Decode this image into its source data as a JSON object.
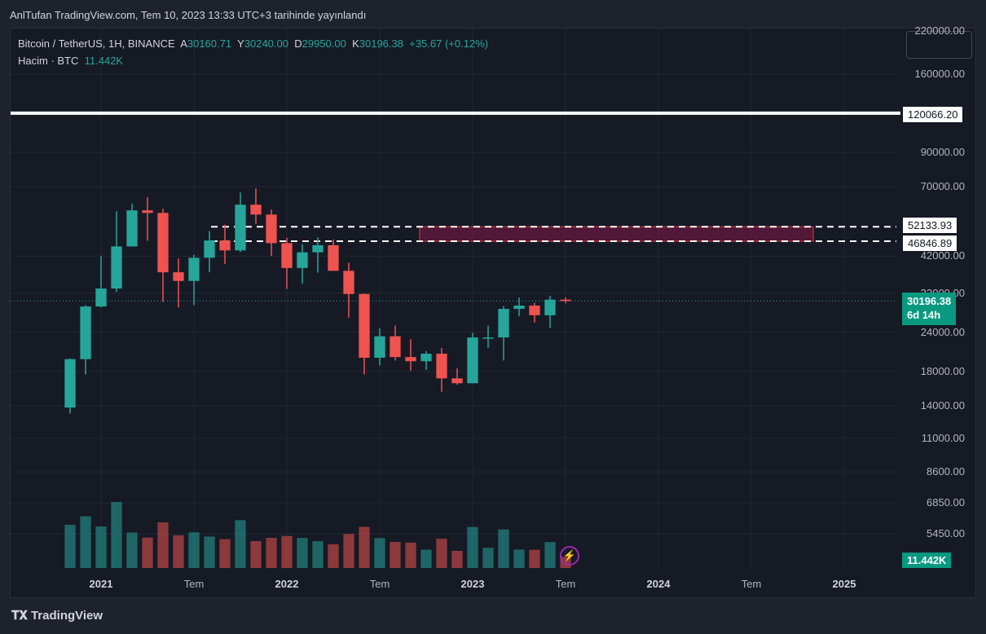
{
  "header": {
    "publish": "AnlTufan TradingView.com, Tem 10, 2023 13:33 UTC+3 tarihinde yayınlandı"
  },
  "legend": {
    "symbol": "Bitcoin / TetherUS, 1H, BINANCE",
    "open_label": "A",
    "open": "30160.71",
    "high_label": "Y",
    "high": "30240.00",
    "low_label": "D",
    "low": "29950.00",
    "close_label": "K",
    "close": "30196.38",
    "change": "+35.67 (+0.12%)",
    "volume_label": "Hacim · BTC",
    "volume": "11.442K"
  },
  "y_ticks": [
    "220000.00",
    "160000.00",
    "90000.00",
    "70000.00",
    "42000.00",
    "32000.00",
    "24000.00",
    "18000.00",
    "14000.00",
    "11000.00",
    "8600.00",
    "6850.00",
    "5450.00"
  ],
  "x_ticks": [
    "2021",
    "Tem",
    "2022",
    "Tem",
    "2023",
    "Tem",
    "2024",
    "Tem",
    "2025"
  ],
  "price_tags": {
    "line_top": "120066.20",
    "zone_high": "52133.93",
    "zone_low": "46846.89",
    "current": "30196.38",
    "countdown": "6d 14h",
    "volume_now": "11.442K"
  },
  "colors": {
    "up": "#26a69a",
    "down": "#ef5350",
    "zone": "#c2185b"
  },
  "footer": {
    "brand": "TradingView"
  },
  "chart_data": {
    "type": "candlestick",
    "symbol": "Bitcoin / TetherUS",
    "exchange": "BINANCE",
    "y_scale": "log",
    "horizontal_lines": [
      120066.2,
      52133.93,
      46846.89
    ],
    "resistance_zone": {
      "low": 46846.89,
      "high": 52133.93
    },
    "current_price": 30196.38,
    "ohlc": [
      {
        "d": "2020-11",
        "o": 13800,
        "h": 19800,
        "l": 13200,
        "c": 19700
      },
      {
        "d": "2020-12",
        "o": 19700,
        "h": 29300,
        "l": 17600,
        "c": 29000
      },
      {
        "d": "2021-01",
        "o": 29000,
        "h": 42000,
        "l": 28800,
        "c": 33100
      },
      {
        "d": "2021-02",
        "o": 33100,
        "h": 58400,
        "l": 32300,
        "c": 45100
      },
      {
        "d": "2021-03",
        "o": 45100,
        "h": 61800,
        "l": 45000,
        "c": 58800
      },
      {
        "d": "2021-04",
        "o": 58800,
        "h": 64800,
        "l": 47000,
        "c": 57700
      },
      {
        "d": "2021-05",
        "o": 57700,
        "h": 59500,
        "l": 30000,
        "c": 37300
      },
      {
        "d": "2021-06",
        "o": 37300,
        "h": 41300,
        "l": 28800,
        "c": 35000
      },
      {
        "d": "2021-07",
        "o": 35000,
        "h": 42400,
        "l": 29300,
        "c": 41500
      },
      {
        "d": "2021-08",
        "o": 41500,
        "h": 50500,
        "l": 37300,
        "c": 47100
      },
      {
        "d": "2021-09",
        "o": 47100,
        "h": 52900,
        "l": 39600,
        "c": 43800
      },
      {
        "d": "2021-10",
        "o": 43800,
        "h": 67000,
        "l": 43300,
        "c": 61300
      },
      {
        "d": "2021-11",
        "o": 61300,
        "h": 69000,
        "l": 53300,
        "c": 57000
      },
      {
        "d": "2021-12",
        "o": 57000,
        "h": 59100,
        "l": 42000,
        "c": 46200
      },
      {
        "d": "2022-01",
        "o": 46200,
        "h": 48000,
        "l": 33000,
        "c": 38500
      },
      {
        "d": "2022-02",
        "o": 38500,
        "h": 45800,
        "l": 34300,
        "c": 43200
      },
      {
        "d": "2022-03",
        "o": 43200,
        "h": 48200,
        "l": 37200,
        "c": 45500
      },
      {
        "d": "2022-04",
        "o": 45500,
        "h": 47400,
        "l": 37700,
        "c": 37700
      },
      {
        "d": "2022-05",
        "o": 37700,
        "h": 40000,
        "l": 26700,
        "c": 31800
      },
      {
        "d": "2022-06",
        "o": 31800,
        "h": 31900,
        "l": 17600,
        "c": 19900
      },
      {
        "d": "2022-07",
        "o": 19900,
        "h": 24700,
        "l": 18800,
        "c": 23300
      },
      {
        "d": "2022-08",
        "o": 23300,
        "h": 25200,
        "l": 19500,
        "c": 20000
      },
      {
        "d": "2022-09",
        "o": 20000,
        "h": 22800,
        "l": 18100,
        "c": 19400
      },
      {
        "d": "2022-10",
        "o": 19400,
        "h": 20900,
        "l": 18200,
        "c": 20500
      },
      {
        "d": "2022-11",
        "o": 20500,
        "h": 21400,
        "l": 15500,
        "c": 17100
      },
      {
        "d": "2022-12",
        "o": 17100,
        "h": 18400,
        "l": 16300,
        "c": 16500
      },
      {
        "d": "2023-01",
        "o": 16500,
        "h": 23900,
        "l": 16500,
        "c": 23100
      },
      {
        "d": "2023-02",
        "o": 23100,
        "h": 25200,
        "l": 21400,
        "c": 23100
      },
      {
        "d": "2023-03",
        "o": 23100,
        "h": 29100,
        "l": 19500,
        "c": 28500
      },
      {
        "d": "2023-04",
        "o": 28500,
        "h": 31000,
        "l": 27000,
        "c": 29200
      },
      {
        "d": "2023-05",
        "o": 29200,
        "h": 29800,
        "l": 25800,
        "c": 27200
      },
      {
        "d": "2023-06",
        "o": 27200,
        "h": 31400,
        "l": 24800,
        "c": 30500
      },
      {
        "d": "2023-07",
        "o": 30500,
        "h": 31000,
        "l": 29700,
        "c": 30196.38
      }
    ]
  }
}
